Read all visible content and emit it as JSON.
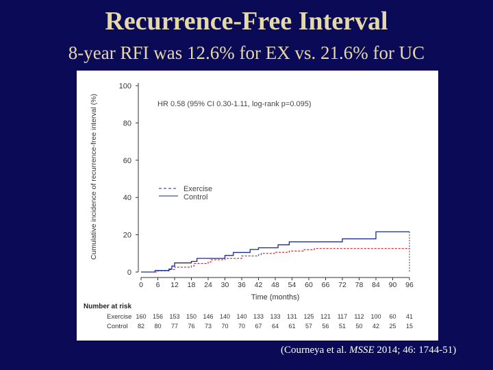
{
  "slide": {
    "title": "Recurrence-Free Interval",
    "subtitle": "8-year RFI was 12.6% for EX vs. 21.6% for UC"
  },
  "citation": {
    "prefix": "(Courneya et al. ",
    "journal": "MSSE",
    "suffix": " 2014; 46: 1744-51)"
  },
  "chart_data": {
    "type": "line",
    "title": "",
    "xlabel": "Time (months)",
    "ylabel": "Cumulative incidence of recurrence-free interval (%)",
    "xlim": [
      0,
      96
    ],
    "ylim": [
      0,
      100
    ],
    "x_ticks": [
      0,
      6,
      12,
      18,
      24,
      30,
      36,
      42,
      48,
      54,
      60,
      66,
      72,
      78,
      84,
      90,
      96
    ],
    "y_ticks": [
      0,
      20,
      40,
      60,
      80,
      100
    ],
    "annotation": "HR 0.58 (95% CI 0.30-1.11, log-rank p=0.095)",
    "legend_position": "middle-left",
    "series": [
      {
        "name": "Exercise",
        "color": "#1a2a8c",
        "dash": "dashed",
        "step_points": [
          [
            0,
            0
          ],
          [
            6,
            0.6
          ],
          [
            10,
            1.3
          ],
          [
            12,
            2.6
          ],
          [
            18,
            3.3
          ],
          [
            19,
            4.6
          ],
          [
            24,
            5.3
          ],
          [
            25,
            6.6
          ],
          [
            30,
            7.3
          ],
          [
            36,
            8.6
          ],
          [
            42,
            9.3
          ],
          [
            43,
            10.0
          ],
          [
            48,
            10.6
          ],
          [
            53,
            11.3
          ],
          [
            58,
            12.0
          ],
          [
            62,
            12.6
          ],
          [
            96,
            12.6
          ]
        ]
      },
      {
        "name": "Control",
        "color": "#1a2a8c",
        "dash": "solid",
        "step_points": [
          [
            0,
            0
          ],
          [
            5,
            0.8
          ],
          [
            10,
            1.6
          ],
          [
            11,
            3.2
          ],
          [
            12,
            4.9
          ],
          [
            18,
            5.7
          ],
          [
            20,
            7.3
          ],
          [
            30,
            8.9
          ],
          [
            33,
            10.5
          ],
          [
            39,
            12.1
          ],
          [
            42,
            13.0
          ],
          [
            49,
            14.6
          ],
          [
            53,
            16.2
          ],
          [
            72,
            17.8
          ],
          [
            84,
            21.6
          ],
          [
            96,
            21.6
          ]
        ]
      }
    ],
    "risk_table": {
      "header": "Number at risk",
      "rows": [
        {
          "label": "Exercise",
          "values": [
            "160",
            "156",
            "153",
            "150",
            "146",
            "140",
            "140",
            "133",
            "133",
            "131",
            "125",
            "121",
            "117",
            "112",
            "100",
            "60",
            "41"
          ]
        },
        {
          "label": "Control",
          "values": [
            "82",
            "80",
            "77",
            "76",
            "73",
            "70",
            "70",
            "67",
            "64",
            "61",
            "57",
            "56",
            "51",
            "50",
            "42",
            "25",
            "15"
          ]
        }
      ]
    }
  }
}
